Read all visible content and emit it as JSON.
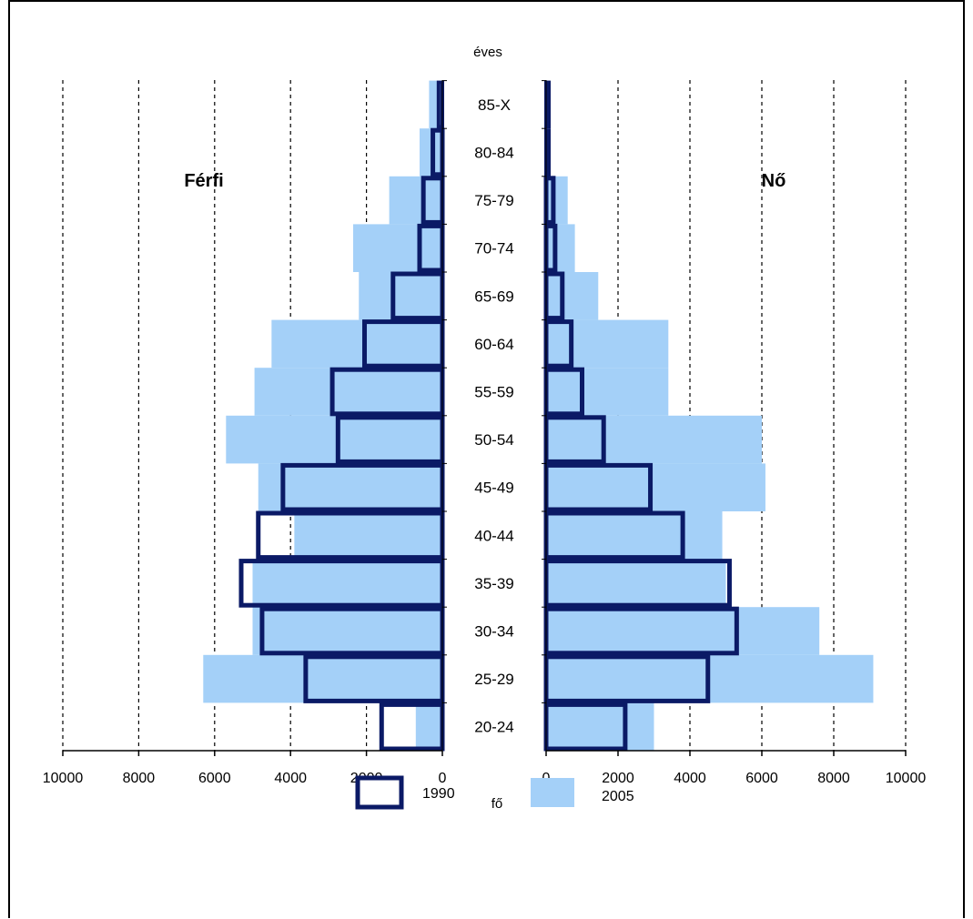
{
  "chart_data": {
    "type": "bar",
    "subtype": "population-pyramid",
    "y_unit_label": "éves",
    "x_unit_label": "fő",
    "left_label": "Férfi",
    "right_label": "Nő",
    "categories": [
      "20-24",
      "25-29",
      "30-34",
      "35-39",
      "40-44",
      "45-49",
      "50-54",
      "55-59",
      "60-64",
      "65-69",
      "70-74",
      "75-79",
      "80-84",
      "85-X"
    ],
    "x_ticks_left": [
      "10000",
      "8000",
      "6000",
      "4000",
      "2000",
      "0"
    ],
    "x_ticks_right": [
      "0",
      "2000",
      "4000",
      "6000",
      "8000",
      "10000"
    ],
    "xlim": [
      0,
      10000
    ],
    "grid": "vertical dashed",
    "legend_position": "bottom",
    "colors": {
      "outline_1990": "#0b1a66",
      "fill_2005": "#a4d0f8"
    },
    "series": [
      {
        "name": "1990",
        "style": "outline",
        "male": [
          1600,
          3600,
          4750,
          5300,
          4850,
          4200,
          2750,
          2900,
          2050,
          1300,
          600,
          500,
          250,
          100
        ],
        "female": [
          2200,
          4500,
          5300,
          5100,
          3800,
          2900,
          1600,
          1000,
          700,
          450,
          250,
          200,
          50,
          50
        ]
      },
      {
        "name": "2005",
        "style": "filled",
        "male": [
          700,
          6300,
          5000,
          5000,
          3900,
          4850,
          5700,
          4950,
          4500,
          2200,
          2350,
          1400,
          600,
          350
        ],
        "female": [
          3000,
          9100,
          7600,
          5000,
          4900,
          6100,
          6000,
          3400,
          3400,
          1450,
          800,
          600,
          50,
          50
        ]
      }
    ]
  }
}
